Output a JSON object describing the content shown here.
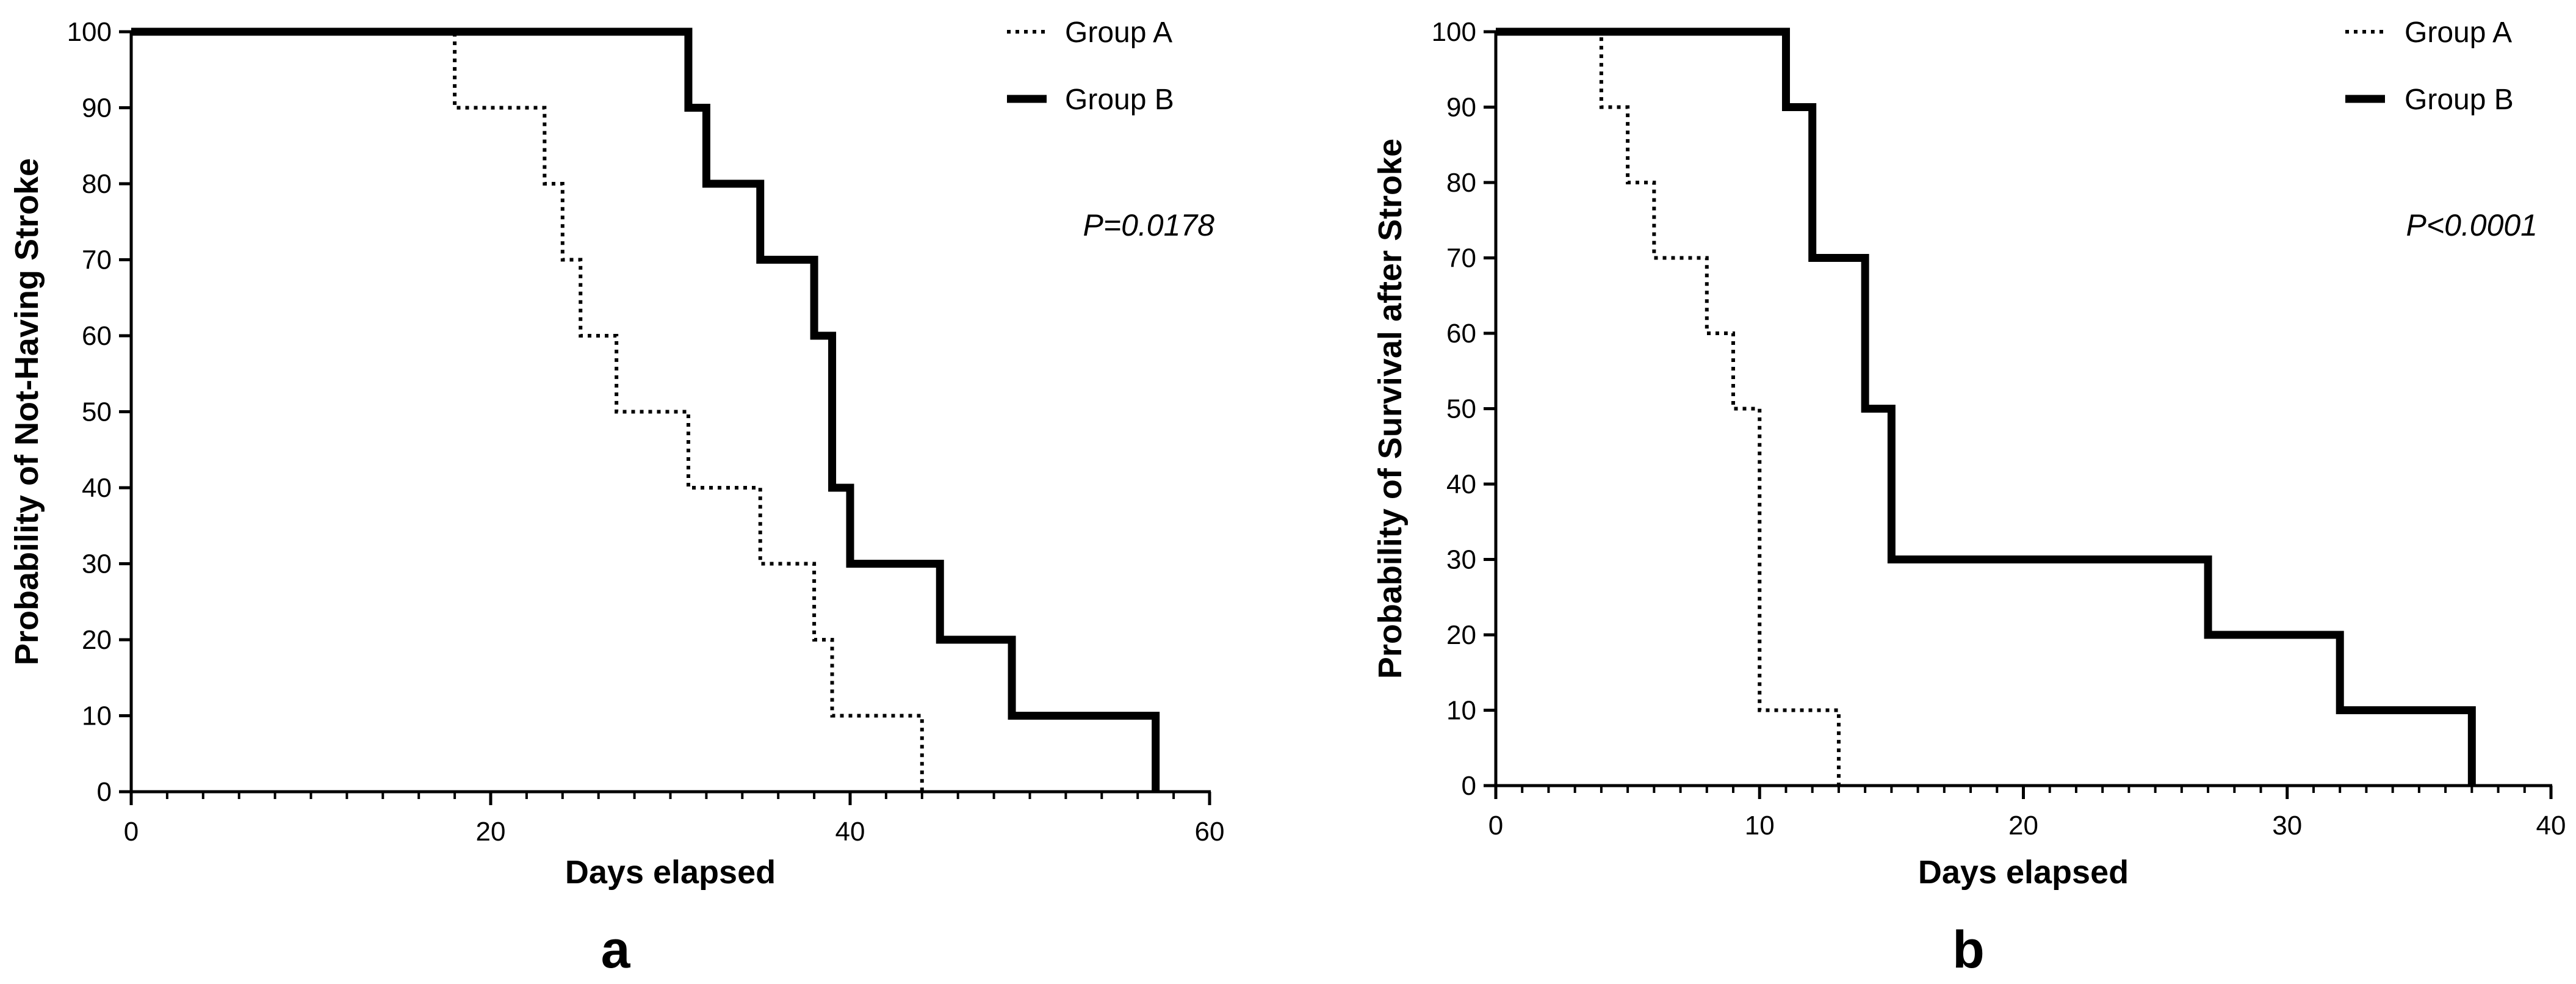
{
  "chart_data": [
    {
      "type": "line",
      "panel_label": "a",
      "xlabel": "Days elapsed",
      "ylabel": "Probability of Not-Having Stroke",
      "xlim": [
        0,
        60
      ],
      "ylim": [
        0,
        100
      ],
      "x_ticks": [
        0,
        20,
        40,
        60
      ],
      "y_ticks": [
        0,
        10,
        20,
        30,
        40,
        50,
        60,
        70,
        80,
        90,
        100
      ],
      "x_minor_step": 2,
      "legend_position": "top-right",
      "annotation": "P=0.0178",
      "series": [
        {
          "name": "Group A",
          "style": "dotted",
          "x": [
            0,
            18,
            23,
            24,
            25,
            27,
            31,
            35,
            38,
            39,
            44
          ],
          "y": [
            100,
            90,
            80,
            70,
            60,
            50,
            40,
            30,
            20,
            10,
            0
          ]
        },
        {
          "name": "Group B",
          "style": "solid-bold",
          "x": [
            0,
            31,
            32,
            35,
            38,
            39,
            40,
            45,
            49,
            57
          ],
          "y": [
            100,
            90,
            80,
            70,
            60,
            40,
            30,
            20,
            10,
            0
          ]
        }
      ]
    },
    {
      "type": "line",
      "panel_label": "b",
      "xlabel": "Days elapsed",
      "ylabel": "Probability of Survival after Stroke",
      "xlim": [
        0,
        40
      ],
      "ylim": [
        0,
        100
      ],
      "x_ticks": [
        0,
        10,
        20,
        30,
        40
      ],
      "y_ticks": [
        0,
        10,
        20,
        30,
        40,
        50,
        60,
        70,
        80,
        90,
        100
      ],
      "x_minor_step": 1,
      "legend_position": "top-right",
      "annotation": "P<0.0001",
      "series": [
        {
          "name": "Group A",
          "style": "dotted",
          "x": [
            0,
            4,
            5,
            6,
            8,
            9,
            10,
            13
          ],
          "y": [
            100,
            90,
            80,
            70,
            60,
            50,
            10,
            0
          ]
        },
        {
          "name": "Group B",
          "style": "solid-bold",
          "x": [
            0,
            11,
            12,
            14,
            15,
            27,
            32,
            37
          ],
          "y": [
            100,
            90,
            70,
            50,
            30,
            20,
            10,
            0
          ]
        }
      ]
    }
  ]
}
